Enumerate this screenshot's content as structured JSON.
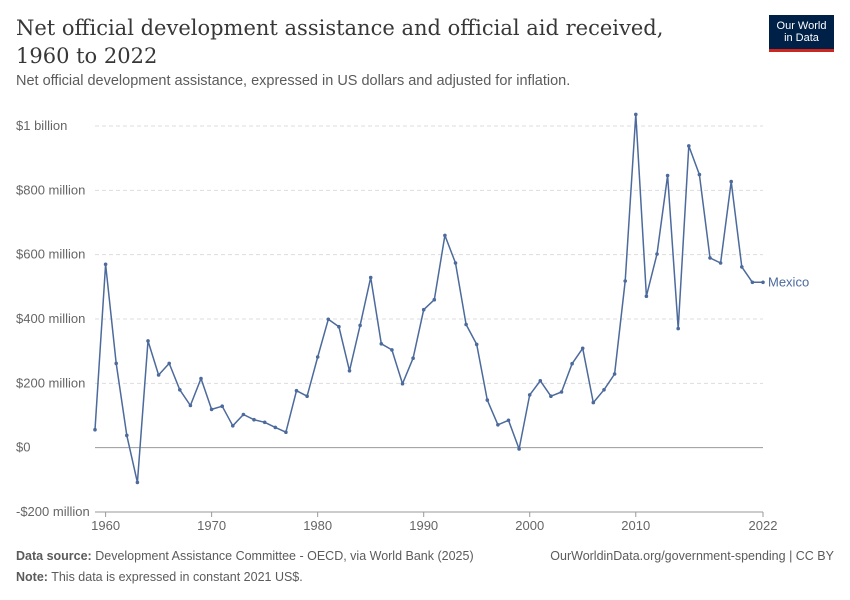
{
  "header": {
    "title": "Net official development assistance and official aid received, 1960 to 2022",
    "subtitle": "Net official development assistance, expressed in US dollars and adjusted for inflation."
  },
  "logo": {
    "line1": "Our World",
    "line2": "in Data"
  },
  "footer": {
    "source_label": "Data source:",
    "source_text": "Development Assistance Committee - OECD, via World Bank (2025)",
    "note_label": "Note:",
    "note_text": "This data is expressed in constant 2021 US$.",
    "url": "OurWorldinData.org/government-spending | CC BY"
  },
  "colors": {
    "series": "#4c6a9c",
    "grid": "#dddddd",
    "axis": "#999999"
  },
  "chart_data": {
    "type": "line",
    "title": "Net official development assistance and official aid received, 1960 to 2022",
    "subtitle": "Net official development assistance, expressed in US dollars and adjusted for inflation.",
    "xlabel": "",
    "ylabel": "",
    "xlim": [
      1959,
      2022
    ],
    "ylim": [
      -200000000,
      1000000000
    ],
    "grid": true,
    "x_ticks": [
      {
        "value": 1960,
        "label": "1960"
      },
      {
        "value": 1970,
        "label": "1970"
      },
      {
        "value": 1980,
        "label": "1980"
      },
      {
        "value": 1990,
        "label": "1990"
      },
      {
        "value": 2000,
        "label": "2000"
      },
      {
        "value": 2010,
        "label": "2010"
      },
      {
        "value": 2022,
        "label": "2022"
      }
    ],
    "y_ticks": [
      {
        "value": 1000000000,
        "label": "$1 billion"
      },
      {
        "value": 800000000,
        "label": "$800 million"
      },
      {
        "value": 600000000,
        "label": "$600 million"
      },
      {
        "value": 400000000,
        "label": "$400 million"
      },
      {
        "value": 200000000,
        "label": "$200 million"
      },
      {
        "value": 0,
        "label": "$0"
      },
      {
        "value": -200000000,
        "label": "-$200 million"
      }
    ],
    "series": [
      {
        "name": "Mexico",
        "color": "#4c6a9c",
        "x": [
          1959,
          1960,
          1961,
          1962,
          1963,
          1964,
          1965,
          1966,
          1967,
          1968,
          1969,
          1970,
          1971,
          1972,
          1973,
          1974,
          1975,
          1976,
          1977,
          1978,
          1979,
          1980,
          1981,
          1982,
          1983,
          1984,
          1985,
          1986,
          1987,
          1988,
          1989,
          1990,
          1991,
          1992,
          1993,
          1994,
          1995,
          1996,
          1997,
          1998,
          1999,
          2000,
          2001,
          2002,
          2003,
          2004,
          2005,
          2006,
          2007,
          2008,
          2009,
          2010,
          2011,
          2012,
          2013,
          2014,
          2015,
          2016,
          2017,
          2018,
          2019,
          2020,
          2021,
          2022
        ],
        "values": [
          56000000,
          570000000,
          262000000,
          38000000,
          -108000000,
          332000000,
          226000000,
          262000000,
          180000000,
          131000000,
          215000000,
          119000000,
          129000000,
          68000000,
          103000000,
          87000000,
          79000000,
          63000000,
          48000000,
          177000000,
          160000000,
          282000000,
          399000000,
          376000000,
          239000000,
          380000000,
          529000000,
          323000000,
          304000000,
          199000000,
          278000000,
          429000000,
          460000000,
          660000000,
          574000000,
          383000000,
          321000000,
          148000000,
          71000000,
          85000000,
          -4000000,
          164000000,
          208000000,
          160000000,
          173000000,
          261000000,
          309000000,
          140000000,
          180000000,
          229000000,
          518000000,
          1036000000,
          471000000,
          602000000,
          846000000,
          370000000,
          938000000,
          849000000,
          590000000,
          574000000,
          827000000,
          562000000,
          514000000,
          514000000
        ]
      }
    ]
  }
}
